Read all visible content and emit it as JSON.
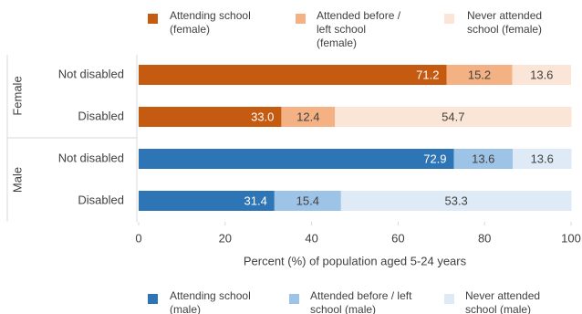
{
  "chart_data": {
    "type": "bar",
    "orientation": "horizontal",
    "stacked": true,
    "xlabel": "Percent (%) of population aged 5-24 years",
    "xlim": [
      0,
      100
    ],
    "xticks": [
      0,
      20,
      40,
      60,
      80,
      100
    ],
    "groups": [
      {
        "name": "Female",
        "categories": [
          "Not disabled",
          "Disabled"
        ],
        "series": [
          {
            "name": "Attending school (female)",
            "color": "#c55a11",
            "values": [
              71.2,
              33
            ],
            "value_labels": [
              "71.2",
              "33.0"
            ]
          },
          {
            "name": "Attended before / left school (female)",
            "color": "#f4b183",
            "values": [
              15.2,
              12.4
            ],
            "value_labels": [
              "15.2",
              "12.4"
            ]
          },
          {
            "name": "Never attended school (female)",
            "color": "#fbe5d6",
            "values": [
              13.6,
              54.7
            ],
            "value_labels": [
              "13.6",
              "54.7"
            ]
          }
        ]
      },
      {
        "name": "Male",
        "categories": [
          "Not disabled",
          "Disabled"
        ],
        "series": [
          {
            "name": "Attending school (male)",
            "color": "#2e75b6",
            "values": [
              72.9,
              31.4
            ],
            "value_labels": [
              "72.9",
              "31.4"
            ]
          },
          {
            "name": "Attended before / left school (male)",
            "color": "#9dc3e6",
            "values": [
              13.6,
              15.4
            ],
            "value_labels": [
              "13.6",
              "15.4"
            ]
          },
          {
            "name": "Never attended school (male)",
            "color": "#deebf7",
            "values": [
              13.6,
              53.3
            ],
            "value_labels": [
              "13.6",
              "53.3"
            ]
          }
        ]
      }
    ]
  }
}
